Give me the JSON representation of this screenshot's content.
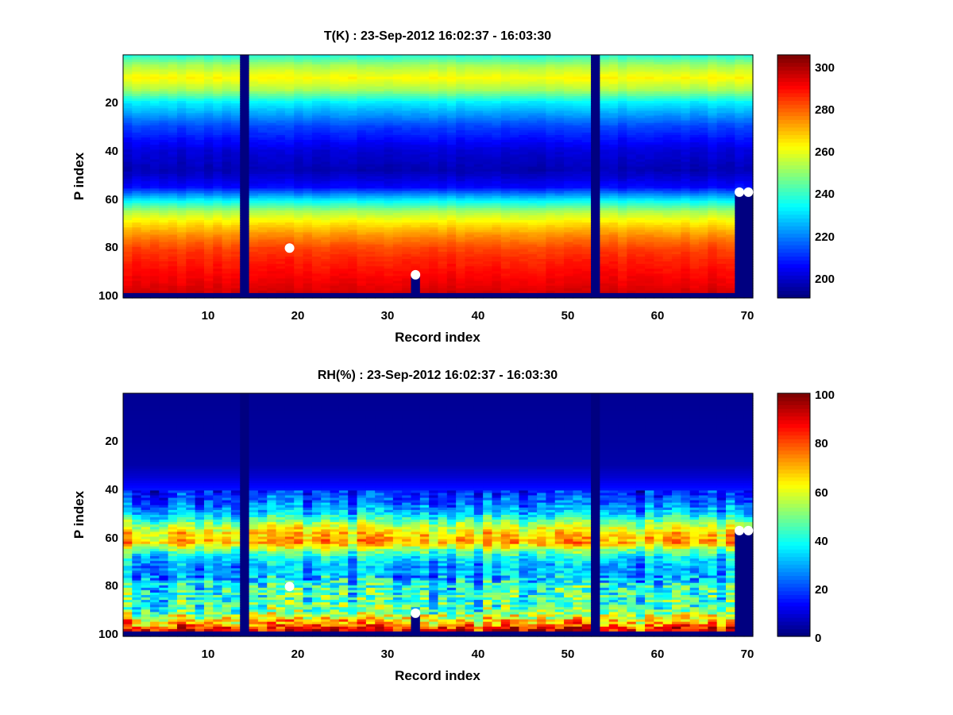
{
  "chart_data": [
    {
      "type": "heatmap",
      "title": "T(K) : 23-Sep-2012 16:02:37 - 16:03:30",
      "xlabel": "Record index",
      "ylabel": "P index",
      "xlim": [
        0.5,
        70.5
      ],
      "ylim": [
        0.5,
        100.5
      ],
      "y_reversed": true,
      "x_ticks": [
        "10",
        "20",
        "30",
        "40",
        "50",
        "60",
        "70"
      ],
      "y_ticks": [
        "20",
        "40",
        "60",
        "80",
        "100"
      ],
      "colorbar": {
        "min": 190,
        "max": 305,
        "ticks": [
          "200",
          "220",
          "240",
          "260",
          "280",
          "300"
        ],
        "colormap": "jet"
      },
      "profile_levels": [
        1,
        5,
        10,
        15,
        20,
        30,
        40,
        48,
        55,
        60,
        65,
        70,
        75,
        80,
        85,
        90,
        95,
        99
      ],
      "profile_values": [
        238,
        252,
        262,
        252,
        232,
        212,
        200,
        196,
        205,
        230,
        252,
        265,
        275,
        283,
        287,
        290,
        293,
        296
      ],
      "missing_records": [
        14,
        53
      ],
      "bottom_missing_levels": [
        99,
        100
      ],
      "partial_missing": [
        {
          "record": 33,
          "from_level": 91
        },
        {
          "record": 69,
          "from_level": 57
        },
        {
          "record": 70,
          "from_level": 57
        }
      ],
      "markers": [
        {
          "record": 19,
          "level": 80
        },
        {
          "record": 33,
          "level": 91
        },
        {
          "record": 69,
          "level": 57
        },
        {
          "record": 70,
          "level": 57
        }
      ]
    },
    {
      "type": "heatmap",
      "title": "RH(%) : 23-Sep-2012 16:02:37 - 16:03:30",
      "xlabel": "Record index",
      "ylabel": "P index",
      "xlim": [
        0.5,
        70.5
      ],
      "ylim": [
        0.5,
        100.5
      ],
      "y_reversed": true,
      "x_ticks": [
        "10",
        "20",
        "30",
        "40",
        "50",
        "60",
        "70"
      ],
      "y_ticks": [
        "20",
        "40",
        "60",
        "80",
        "100"
      ],
      "colorbar": {
        "min": 0,
        "max": 100,
        "ticks": [
          "0",
          "20",
          "40",
          "60",
          "80",
          "100"
        ],
        "colormap": "jet"
      },
      "profile_levels": [
        1,
        20,
        30,
        35,
        40,
        45,
        50,
        55,
        58,
        62,
        65,
        68,
        72,
        76,
        80,
        85,
        90,
        95,
        98
      ],
      "profile_values": [
        2,
        3,
        4,
        8,
        14,
        20,
        32,
        55,
        65,
        70,
        50,
        35,
        28,
        30,
        40,
        42,
        45,
        70,
        88
      ],
      "missing_records": [
        14,
        53
      ],
      "bottom_missing_levels": [
        99,
        100
      ],
      "partial_missing": [
        {
          "record": 33,
          "from_level": 91
        },
        {
          "record": 69,
          "from_level": 57
        },
        {
          "record": 70,
          "from_level": 57
        }
      ],
      "markers": [
        {
          "record": 19,
          "level": 80
        },
        {
          "record": 33,
          "level": 91
        },
        {
          "record": 69,
          "level": 57
        },
        {
          "record": 70,
          "level": 57
        }
      ]
    }
  ]
}
